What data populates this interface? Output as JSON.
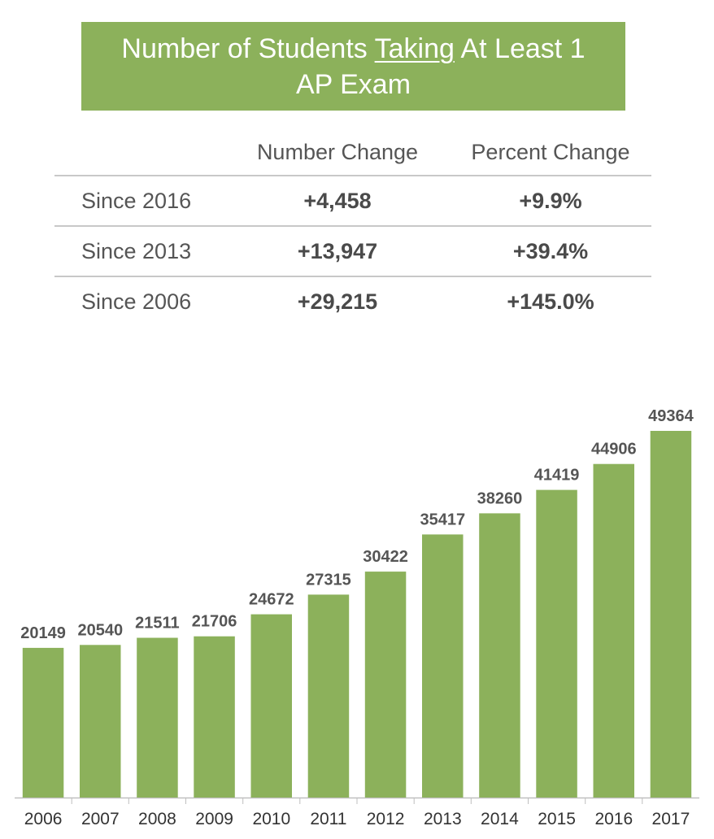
{
  "title": {
    "before": "Number of Students ",
    "underlined": "Taking",
    "after": " At Least 1",
    "line2": "AP Exam"
  },
  "summary_table": {
    "headers": [
      "",
      "Number Change",
      "Percent Change"
    ],
    "rows": [
      {
        "label": "Since 2016",
        "number_change": "+4,458",
        "percent_change": "+9.9%"
      },
      {
        "label": "Since 2013",
        "number_change": "+13,947",
        "percent_change": "+39.4%"
      },
      {
        "label": "Since 2006",
        "number_change": "+29,215",
        "percent_change": "+145.0%"
      }
    ]
  },
  "chart_data": {
    "type": "bar",
    "categories": [
      "2006",
      "2007",
      "2008",
      "2009",
      "2010",
      "2011",
      "2012",
      "2013",
      "2014",
      "2015",
      "2016",
      "2017"
    ],
    "values": [
      20149,
      20540,
      21511,
      21706,
      24672,
      27315,
      30422,
      35417,
      38260,
      41419,
      44906,
      49364
    ],
    "ylim": [
      0,
      49364
    ],
    "grid": false,
    "data_labels": true,
    "bar_color": "#8cb15b",
    "label_color": "#555555"
  }
}
